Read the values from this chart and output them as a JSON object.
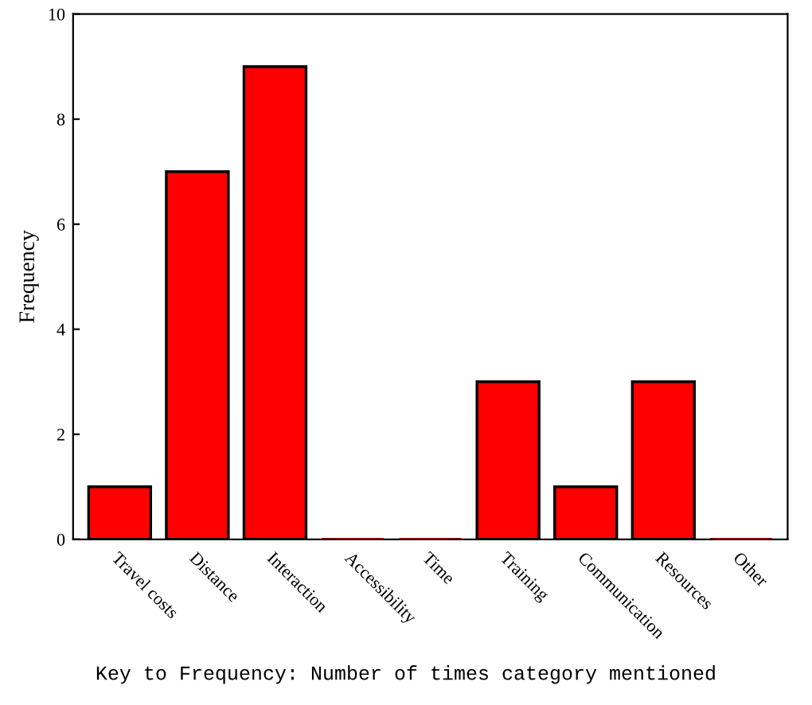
{
  "chart_data": {
    "type": "bar",
    "categories": [
      "Travel costs",
      "Distance",
      "Interaction",
      "Accessibility",
      "Time",
      "Training",
      "Communication",
      "Resources",
      "Other"
    ],
    "values": [
      1,
      7,
      9,
      0,
      0,
      3,
      1,
      3,
      0
    ],
    "color": "#ff0000",
    "ylabel": "Frequency",
    "ylim": [
      0,
      10
    ],
    "yticks": [
      0,
      2,
      4,
      6,
      8,
      10
    ],
    "grid": false,
    "annotations": [
      "Key to Frequency: Number of times category mentioned"
    ]
  }
}
